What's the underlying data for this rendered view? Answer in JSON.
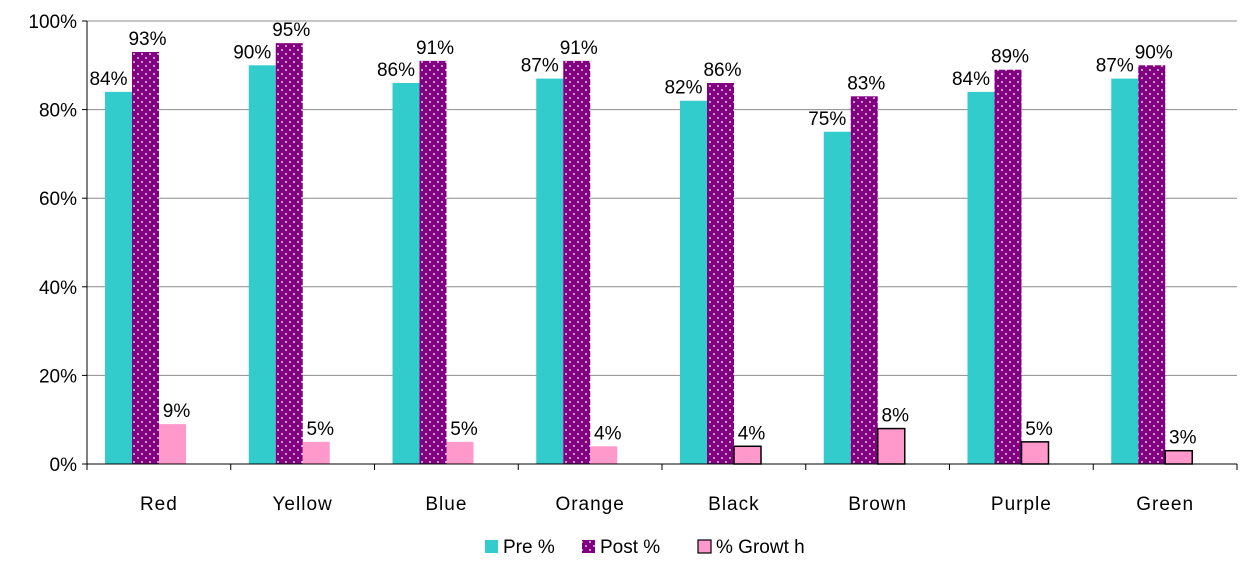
{
  "chart_data": {
    "type": "bar",
    "title": "",
    "xlabel": "",
    "ylabel": "",
    "ylim": [
      0,
      100
    ],
    "y_ticks": [
      "0%",
      "20%",
      "40%",
      "60%",
      "80%",
      "100%"
    ],
    "grid": true,
    "legend_position": "bottom",
    "categories": [
      "Red",
      "Yellow",
      "Blue",
      "Orange",
      "Black",
      "Brown",
      "Purple",
      "Green"
    ],
    "series": [
      {
        "name": "Pre %",
        "color": "#33CCCC",
        "pattern": "solid",
        "values": [
          84,
          90,
          86,
          87,
          82,
          75,
          84,
          87
        ],
        "labels": [
          "84%",
          "90%",
          "86%",
          "87%",
          "82%",
          "75%",
          "84%",
          "87%"
        ]
      },
      {
        "name": "Post  %",
        "color": "#800080",
        "pattern": "white-dots",
        "values": [
          93,
          95,
          91,
          91,
          86,
          83,
          89,
          90
        ],
        "labels": [
          "93%",
          "95%",
          "91%",
          "91%",
          "86%",
          "83%",
          "89%",
          "90%"
        ]
      },
      {
        "name": "% Growt h",
        "color": "#FF99CC",
        "pattern": "solid",
        "values": [
          9,
          5,
          5,
          4,
          4,
          8,
          5,
          3
        ],
        "labels": [
          "9%",
          "5%",
          "5%",
          "4%",
          "4%",
          "8%",
          "5%",
          "3%"
        ],
        "outlined": [
          false,
          false,
          false,
          false,
          true,
          true,
          true,
          true
        ]
      }
    ]
  }
}
